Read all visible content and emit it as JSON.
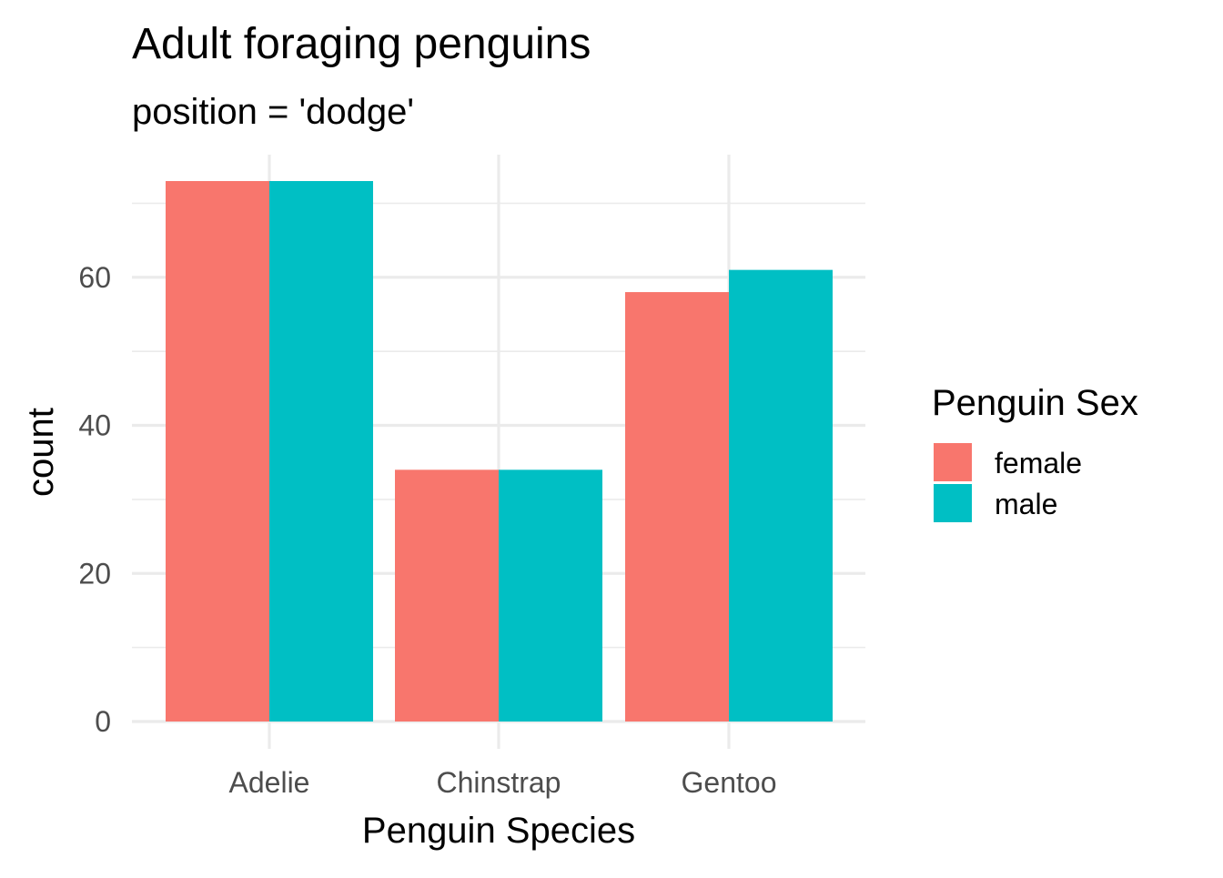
{
  "chart_data": {
    "type": "bar",
    "title": "Adult foraging penguins",
    "subtitle": "position = 'dodge'",
    "xlabel": "Penguin Species",
    "ylabel": "count",
    "categories": [
      "Adelie",
      "Chinstrap",
      "Gentoo"
    ],
    "series": [
      {
        "name": "female",
        "values": [
          73,
          34,
          58
        ],
        "color": "#F8766D"
      },
      {
        "name": "male",
        "values": [
          73,
          34,
          61
        ],
        "color": "#00BFC4"
      }
    ],
    "ylim": [
      0,
      76.5
    ],
    "yticks": [
      0,
      20,
      40,
      60
    ],
    "grid": true,
    "legend": {
      "title": "Penguin Sex",
      "placement": "right",
      "entries": [
        "female",
        "male"
      ]
    }
  }
}
